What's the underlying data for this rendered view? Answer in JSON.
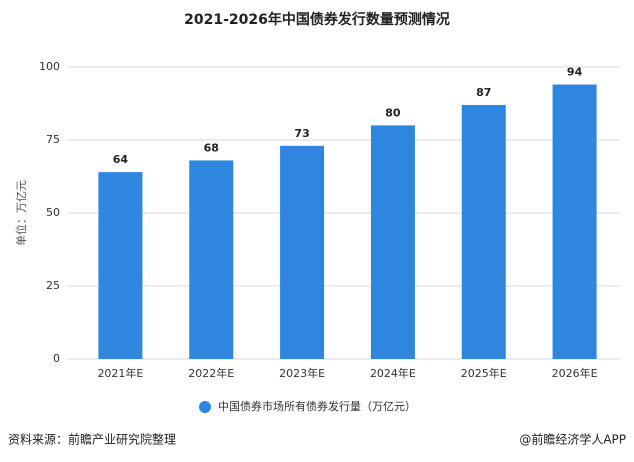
{
  "chart_data": {
    "type": "bar",
    "title": "2021-2026年中国债券发行数量预测情况",
    "y_label": "单位：万亿元",
    "categories": [
      "2021年E",
      "2022年E",
      "2023年E",
      "2024年E",
      "2025年E",
      "2026年E"
    ],
    "series": [
      {
        "name": "中国债券市场所有债券发行量（万亿元）",
        "color": "#2e86de",
        "values": [
          64,
          68,
          73,
          80,
          87,
          94
        ]
      }
    ],
    "ylim": [
      0,
      100
    ],
    "yticks": [
      0,
      25,
      50,
      75,
      100
    ],
    "grid": true,
    "legend": "bottom",
    "source": "资料来源：前瞻产业研究院整理",
    "credit": "@前瞻经济学人APP"
  }
}
